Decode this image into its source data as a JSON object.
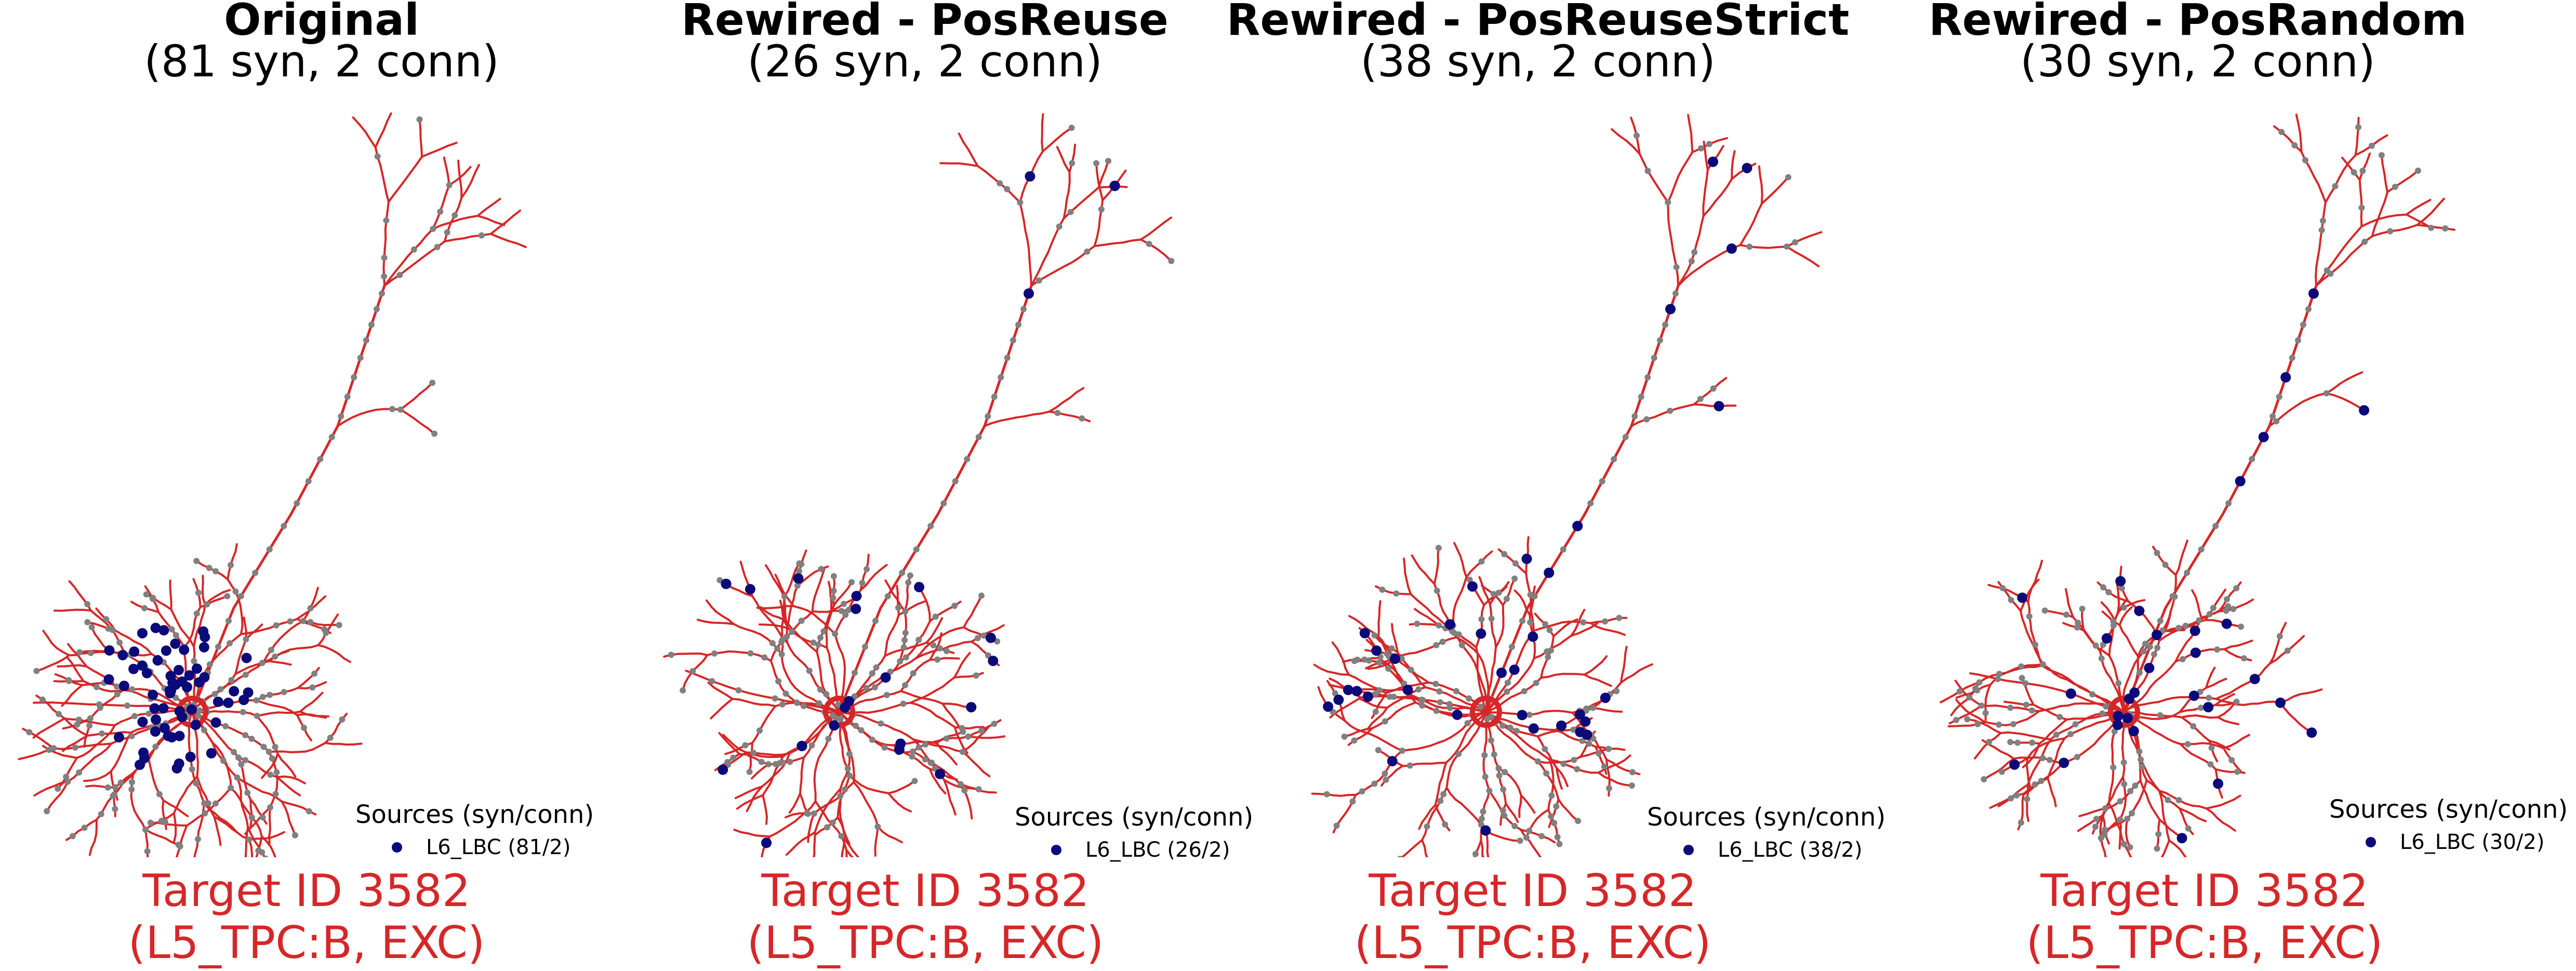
{
  "panels": [
    {
      "title": "Original",
      "subtitle": "(81 syn, 2 conn)",
      "legend_title": "Sources (syn/conn)",
      "legend_entry": "L6_LBC (81/2)",
      "target_id": "Target ID 3582",
      "target_desc": "(L5_TPC:B, EXC)"
    },
    {
      "title": "Rewired - PosReuse",
      "subtitle": "(26 syn, 2 conn)",
      "legend_title": "Sources (syn/conn)",
      "legend_entry": "L6_LBC (26/2)",
      "target_id": "Target ID 3582",
      "target_desc": "(L5_TPC:B, EXC)"
    },
    {
      "title": "Rewired - PosReuseStrict",
      "subtitle": "(38 syn, 2 conn)",
      "legend_title": "Sources (syn/conn)",
      "legend_entry": "L6_LBC (38/2)",
      "target_id": "Target ID 3582",
      "target_desc": "(L5_TPC:B, EXC)"
    },
    {
      "title": "Rewired - PosRandom",
      "subtitle": "(30 syn, 2 conn)",
      "legend_title": "Sources (syn/conn)",
      "legend_entry": "L6_LBC (30/2)",
      "target_id": "Target ID 3582",
      "target_desc": "(L5_TPC:B, EXC)"
    }
  ],
  "colors": {
    "dendrite": "#d62728",
    "synapse_marker": "#808080",
    "source_synapse": "#0a0a7a",
    "target_label": "#d62728"
  }
}
